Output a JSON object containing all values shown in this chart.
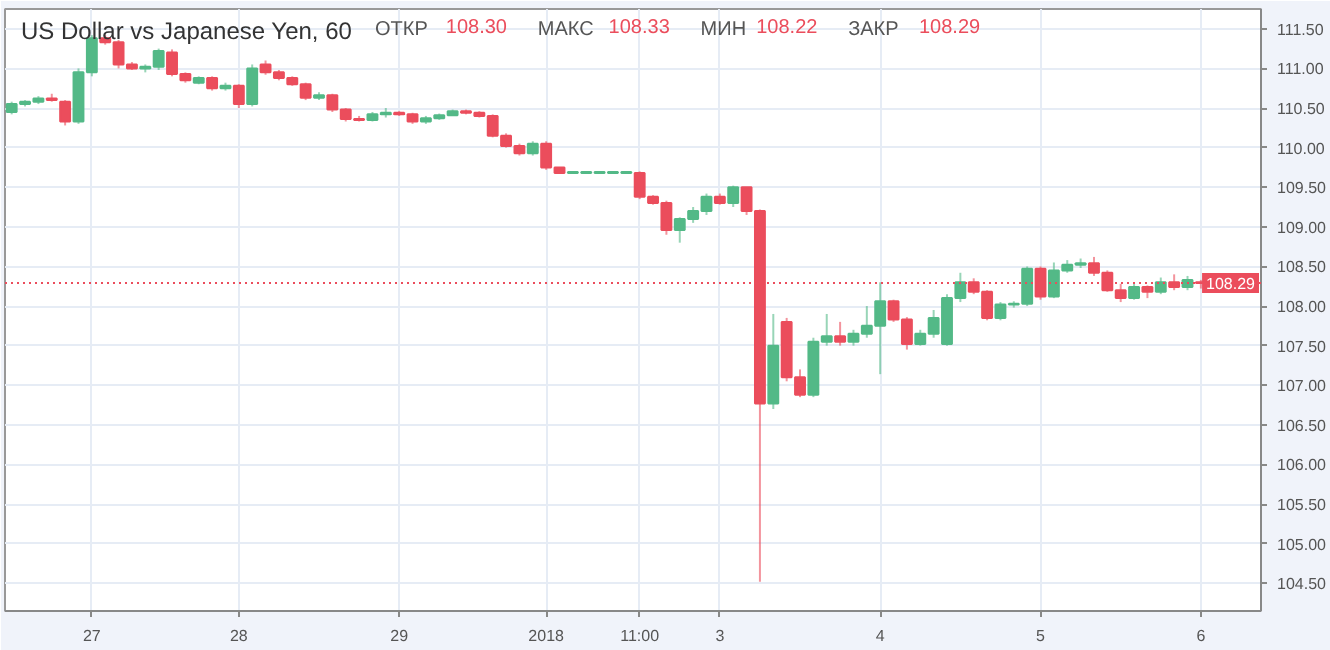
{
  "chart_data": {
    "type": "candlestick",
    "title": "US Dollar vs Japanese Yen, 60",
    "annotations": [
      "ОТКР 108.30",
      "МАКС 108.33",
      "МИН 108.22",
      "ЗАКР 108.29"
    ],
    "categories": [
      null,
      null,
      null,
      null,
      null,
      null,
      "27",
      null,
      null,
      null,
      null,
      null,
      null,
      null,
      null,
      null,
      null,
      "28",
      null,
      null,
      null,
      null,
      null,
      null,
      null,
      null,
      null,
      null,
      null,
      "29",
      null,
      null,
      null,
      null,
      null,
      null,
      null,
      null,
      null,
      null,
      "2018",
      null,
      null,
      null,
      null,
      null,
      null,
      "11:00",
      null,
      null,
      null,
      null,
      null,
      "3",
      null,
      null,
      null,
      null,
      null,
      null,
      null,
      null,
      null,
      null,
      null,
      "4",
      null,
      null,
      null,
      null,
      null,
      null,
      null,
      null,
      null,
      null,
      null,
      "5",
      null,
      null,
      null,
      null,
      null,
      null,
      null,
      null,
      null,
      null,
      null,
      "6"
    ],
    "ohlc": [
      [
        110.45,
        110.58,
        110.42,
        110.55
      ],
      [
        110.55,
        110.6,
        110.52,
        110.58
      ],
      [
        110.58,
        110.65,
        110.55,
        110.62
      ],
      [
        110.62,
        110.68,
        110.58,
        110.6
      ],
      [
        110.58,
        110.6,
        110.28,
        110.33
      ],
      [
        110.33,
        111.0,
        110.3,
        110.95
      ],
      [
        110.95,
        111.42,
        110.9,
        111.38
      ],
      [
        111.38,
        111.42,
        111.3,
        111.33
      ],
      [
        111.33,
        111.36,
        111.0,
        111.05
      ],
      [
        111.05,
        111.08,
        110.98,
        111.0
      ],
      [
        111.0,
        111.05,
        110.95,
        111.02
      ],
      [
        111.02,
        111.25,
        110.98,
        111.22
      ],
      [
        111.2,
        111.24,
        110.9,
        110.93
      ],
      [
        110.93,
        110.95,
        110.82,
        110.85
      ],
      [
        110.82,
        110.9,
        110.8,
        110.88
      ],
      [
        110.88,
        110.9,
        110.72,
        110.75
      ],
      [
        110.75,
        110.82,
        110.72,
        110.78
      ],
      [
        110.78,
        110.8,
        110.5,
        110.55
      ],
      [
        110.55,
        111.05,
        110.52,
        111.0
      ],
      [
        111.05,
        111.1,
        110.92,
        110.95
      ],
      [
        110.95,
        110.98,
        110.85,
        110.88
      ],
      [
        110.88,
        110.9,
        110.78,
        110.8
      ],
      [
        110.8,
        110.82,
        110.6,
        110.63
      ],
      [
        110.63,
        110.7,
        110.6,
        110.66
      ],
      [
        110.66,
        110.68,
        110.45,
        110.48
      ],
      [
        110.48,
        110.5,
        110.33,
        110.36
      ],
      [
        110.36,
        110.4,
        110.33,
        110.35
      ],
      [
        110.35,
        110.45,
        110.33,
        110.42
      ],
      [
        110.42,
        110.5,
        110.38,
        110.44
      ],
      [
        110.44,
        110.46,
        110.4,
        110.42
      ],
      [
        110.42,
        110.44,
        110.3,
        110.33
      ],
      [
        110.33,
        110.4,
        110.3,
        110.37
      ],
      [
        110.37,
        110.43,
        110.35,
        110.41
      ],
      [
        110.41,
        110.48,
        110.4,
        110.46
      ],
      [
        110.46,
        110.48,
        110.42,
        110.44
      ],
      [
        110.44,
        110.46,
        110.38,
        110.4
      ],
      [
        110.4,
        110.42,
        110.13,
        110.15
      ],
      [
        110.15,
        110.18,
        110.0,
        110.02
      ],
      [
        110.02,
        110.05,
        109.9,
        109.93
      ],
      [
        109.93,
        110.08,
        109.9,
        110.05
      ],
      [
        110.05,
        110.08,
        109.72,
        109.75
      ],
      [
        109.75,
        109.75,
        109.68,
        109.68
      ],
      [
        109.68,
        109.69,
        109.67,
        109.68
      ],
      [
        109.68,
        109.69,
        109.67,
        109.68
      ],
      [
        109.68,
        109.69,
        109.67,
        109.68
      ],
      [
        109.68,
        109.69,
        109.67,
        109.68
      ],
      [
        109.68,
        109.69,
        109.67,
        109.68
      ],
      [
        109.68,
        109.7,
        109.35,
        109.38
      ],
      [
        109.38,
        109.4,
        109.28,
        109.3
      ],
      [
        109.3,
        109.33,
        108.9,
        108.96
      ],
      [
        108.96,
        109.12,
        108.8,
        109.1
      ],
      [
        109.1,
        109.25,
        109.05,
        109.2
      ],
      [
        109.2,
        109.42,
        109.15,
        109.38
      ],
      [
        109.38,
        109.42,
        109.28,
        109.3
      ],
      [
        109.3,
        109.52,
        109.25,
        109.5
      ],
      [
        109.5,
        109.5,
        109.15,
        109.2
      ],
      [
        109.2,
        109.22,
        104.52,
        106.77
      ],
      [
        106.77,
        107.9,
        106.7,
        107.5
      ],
      [
        107.8,
        107.85,
        107.05,
        107.1
      ],
      [
        107.1,
        107.2,
        106.85,
        106.88
      ],
      [
        106.88,
        107.6,
        106.85,
        107.55
      ],
      [
        107.55,
        107.9,
        107.5,
        107.62
      ],
      [
        107.62,
        107.8,
        107.5,
        107.55
      ],
      [
        107.55,
        107.7,
        107.5,
        107.65
      ],
      [
        107.65,
        108.0,
        107.6,
        107.75
      ],
      [
        107.75,
        108.3,
        107.14,
        108.06
      ],
      [
        108.06,
        108.08,
        107.8,
        107.83
      ],
      [
        107.83,
        107.86,
        107.45,
        107.52
      ],
      [
        107.52,
        107.7,
        107.5,
        107.65
      ],
      [
        107.65,
        107.95,
        107.6,
        107.85
      ],
      [
        107.52,
        108.15,
        107.5,
        108.1
      ],
      [
        108.1,
        108.42,
        108.05,
        108.3
      ],
      [
        108.3,
        108.35,
        108.15,
        108.18
      ],
      [
        108.18,
        108.2,
        107.82,
        107.85
      ],
      [
        107.85,
        108.05,
        107.82,
        108.02
      ],
      [
        108.02,
        108.06,
        107.98,
        108.03
      ],
      [
        108.03,
        108.5,
        108.0,
        108.47
      ],
      [
        108.47,
        108.5,
        108.08,
        108.12
      ],
      [
        108.12,
        108.55,
        108.1,
        108.45
      ],
      [
        108.45,
        108.58,
        108.42,
        108.52
      ],
      [
        108.52,
        108.6,
        108.48,
        108.54
      ],
      [
        108.54,
        108.62,
        108.38,
        108.42
      ],
      [
        108.42,
        108.45,
        108.18,
        108.2
      ],
      [
        108.2,
        108.28,
        108.05,
        108.1
      ],
      [
        108.1,
        108.28,
        108.08,
        108.24
      ],
      [
        108.24,
        108.26,
        108.1,
        108.18
      ],
      [
        108.18,
        108.36,
        108.15,
        108.3
      ],
      [
        108.3,
        108.4,
        108.2,
        108.24
      ],
      [
        108.24,
        108.38,
        108.2,
        108.33
      ],
      [
        108.3,
        108.33,
        108.22,
        108.29
      ]
    ],
    "colors": [
      "#53b987",
      "#53b987",
      "#53b987",
      "#eb4d5c",
      "#eb4d5c",
      "#53b987",
      "#53b987",
      "#eb4d5c",
      "#eb4d5c",
      "#eb4d5c",
      "#53b987",
      "#53b987",
      "#eb4d5c",
      "#eb4d5c",
      "#53b987",
      "#eb4d5c",
      "#53b987",
      "#eb4d5c",
      "#53b987",
      "#eb4d5c",
      "#eb4d5c",
      "#eb4d5c",
      "#eb4d5c",
      "#53b987",
      "#eb4d5c",
      "#eb4d5c",
      "#eb4d5c",
      "#53b987",
      "#53b987",
      "#eb4d5c",
      "#eb4d5c",
      "#53b987",
      "#53b987",
      "#53b987",
      "#eb4d5c",
      "#eb4d5c",
      "#eb4d5c",
      "#eb4d5c",
      "#eb4d5c",
      "#53b987",
      "#eb4d5c",
      "#eb4d5c",
      "#53b987",
      "#53b987",
      "#53b987",
      "#53b987",
      "#53b987",
      "#eb4d5c",
      "#eb4d5c",
      "#eb4d5c",
      "#53b987",
      "#53b987",
      "#53b987",
      "#eb4d5c",
      "#53b987",
      "#eb4d5c",
      "#eb4d5c",
      "#53b987",
      "#eb4d5c",
      "#eb4d5c",
      "#53b987",
      "#53b987",
      "#eb4d5c",
      "#53b987",
      "#53b987",
      "#53b987",
      "#eb4d5c",
      "#eb4d5c",
      "#53b987",
      "#53b987",
      "#53b987",
      "#53b987",
      "#eb4d5c",
      "#eb4d5c",
      "#53b987",
      "#53b987",
      "#53b987",
      "#eb4d5c",
      "#53b987",
      "#53b987",
      "#53b987",
      "#eb4d5c",
      "#eb4d5c",
      "#eb4d5c",
      "#53b987",
      "#eb4d5c",
      "#53b987",
      "#eb4d5c",
      "#53b987",
      "#eb4d5c"
    ],
    "ylim": [
      104.15,
      111.75
    ],
    "yticks": [
      {
        "value": 104.5,
        "label": "104.50"
      },
      {
        "value": 105,
        "label": "105.00"
      },
      {
        "value": 105.5,
        "label": "105.50"
      },
      {
        "value": 106,
        "label": "106.00"
      },
      {
        "value": 106.5,
        "label": "106.50"
      },
      {
        "value": 107,
        "label": "107.00"
      },
      {
        "value": 107.5,
        "label": "107.50"
      },
      {
        "value": 108,
        "label": "108.00"
      },
      {
        "value": 108.5,
        "label": "108.50"
      },
      {
        "value": 109,
        "label": "109.00"
      },
      {
        "value": 109.5,
        "label": "109.50"
      },
      {
        "value": 110,
        "label": "110.00"
      },
      {
        "value": 110.5,
        "label": "110.50"
      },
      {
        "value": 111,
        "label": "111.00"
      },
      {
        "value": 111.5,
        "label": "111.50"
      }
    ],
    "ref_lines": [
      {
        "axis": "y",
        "value": 108.29,
        "label": "108.29",
        "color": "#eb4d5c",
        "line_style": "dotted"
      }
    ],
    "grid": true
  }
}
